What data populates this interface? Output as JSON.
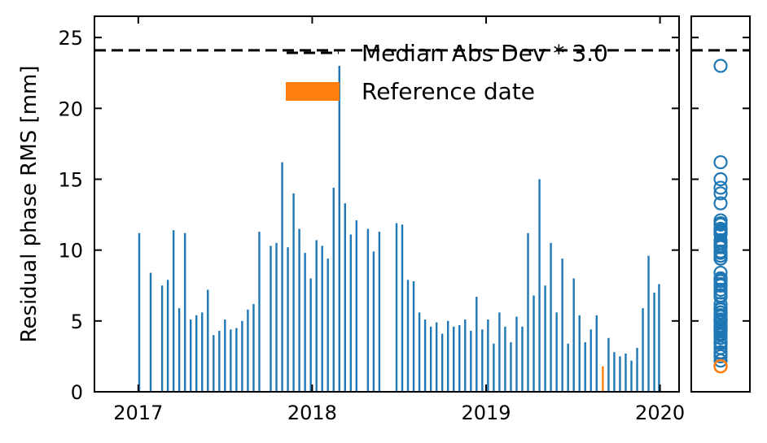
{
  "chart_data": {
    "type": "bar",
    "ylabel": "Residual phase RMS [mm]",
    "ylim": [
      0,
      26.5
    ],
    "xlim": [
      "2016-10-01",
      "2020-02-10"
    ],
    "yticks": [
      0,
      5,
      10,
      15,
      20,
      25
    ],
    "xticks": [
      "2017",
      "2018",
      "2019",
      "2020"
    ],
    "threshold": {
      "value": 24.1,
      "label": "Median Abs Dev * 3.0",
      "style": "dashed",
      "color": "#000000"
    },
    "legend": {
      "position": "top-right",
      "entries": [
        {
          "label": "Median Abs Dev * 3.0",
          "kind": "dashed-line",
          "color": "#000000"
        },
        {
          "label": "Reference date",
          "kind": "patch",
          "color": "#ff7f0e"
        }
      ]
    },
    "series_color": "#1f77b4",
    "reference_color": "#ff7f0e",
    "reference_date": "2019-09-03",
    "bars": [
      {
        "x": "2017-01-03",
        "y": 11.2
      },
      {
        "x": "2017-01-27",
        "y": 8.4
      },
      {
        "x": "2017-02-20",
        "y": 7.5
      },
      {
        "x": "2017-03-04",
        "y": 7.9
      },
      {
        "x": "2017-03-16",
        "y": 11.4
      },
      {
        "x": "2017-03-28",
        "y": 5.9
      },
      {
        "x": "2017-04-09",
        "y": 11.2
      },
      {
        "x": "2017-04-21",
        "y": 5.1
      },
      {
        "x": "2017-05-03",
        "y": 5.4
      },
      {
        "x": "2017-05-15",
        "y": 5.6
      },
      {
        "x": "2017-05-27",
        "y": 7.2
      },
      {
        "x": "2017-06-08",
        "y": 4.0
      },
      {
        "x": "2017-06-20",
        "y": 4.3
      },
      {
        "x": "2017-07-02",
        "y": 5.1
      },
      {
        "x": "2017-07-14",
        "y": 4.4
      },
      {
        "x": "2017-07-26",
        "y": 4.5
      },
      {
        "x": "2017-08-07",
        "y": 5.0
      },
      {
        "x": "2017-08-19",
        "y": 5.8
      },
      {
        "x": "2017-08-31",
        "y": 6.2
      },
      {
        "x": "2017-09-12",
        "y": 11.3
      },
      {
        "x": "2017-10-06",
        "y": 10.3
      },
      {
        "x": "2017-10-18",
        "y": 10.5
      },
      {
        "x": "2017-10-30",
        "y": 16.2
      },
      {
        "x": "2017-11-11",
        "y": 10.2
      },
      {
        "x": "2017-11-23",
        "y": 14.0
      },
      {
        "x": "2017-12-05",
        "y": 11.5
      },
      {
        "x": "2017-12-17",
        "y": 9.8
      },
      {
        "x": "2017-12-29",
        "y": 8.0
      },
      {
        "x": "2018-01-10",
        "y": 10.7
      },
      {
        "x": "2018-01-22",
        "y": 10.3
      },
      {
        "x": "2018-02-03",
        "y": 9.4
      },
      {
        "x": "2018-02-15",
        "y": 14.4
      },
      {
        "x": "2018-02-27",
        "y": 23.0
      },
      {
        "x": "2018-03-11",
        "y": 13.3
      },
      {
        "x": "2018-03-23",
        "y": 11.1
      },
      {
        "x": "2018-04-04",
        "y": 12.1
      },
      {
        "x": "2018-04-28",
        "y": 11.5
      },
      {
        "x": "2018-05-10",
        "y": 9.9
      },
      {
        "x": "2018-05-22",
        "y": 11.3
      },
      {
        "x": "2018-06-27",
        "y": 11.9
      },
      {
        "x": "2018-07-09",
        "y": 11.8
      },
      {
        "x": "2018-07-21",
        "y": 7.9
      },
      {
        "x": "2018-08-02",
        "y": 7.8
      },
      {
        "x": "2018-08-14",
        "y": 5.6
      },
      {
        "x": "2018-08-26",
        "y": 5.1
      },
      {
        "x": "2018-09-07",
        "y": 4.6
      },
      {
        "x": "2018-09-19",
        "y": 4.9
      },
      {
        "x": "2018-10-01",
        "y": 4.1
      },
      {
        "x": "2018-10-13",
        "y": 5.0
      },
      {
        "x": "2018-10-25",
        "y": 4.6
      },
      {
        "x": "2018-11-06",
        "y": 4.7
      },
      {
        "x": "2018-11-18",
        "y": 5.1
      },
      {
        "x": "2018-11-30",
        "y": 4.3
      },
      {
        "x": "2018-12-12",
        "y": 6.7
      },
      {
        "x": "2018-12-24",
        "y": 4.4
      },
      {
        "x": "2019-01-05",
        "y": 5.1
      },
      {
        "x": "2019-01-17",
        "y": 3.4
      },
      {
        "x": "2019-01-29",
        "y": 5.6
      },
      {
        "x": "2019-02-10",
        "y": 4.6
      },
      {
        "x": "2019-02-22",
        "y": 3.5
      },
      {
        "x": "2019-03-06",
        "y": 5.3
      },
      {
        "x": "2019-03-18",
        "y": 4.6
      },
      {
        "x": "2019-03-30",
        "y": 11.2
      },
      {
        "x": "2019-04-11",
        "y": 6.8
      },
      {
        "x": "2019-04-23",
        "y": 15.0
      },
      {
        "x": "2019-05-05",
        "y": 7.5
      },
      {
        "x": "2019-05-17",
        "y": 10.5
      },
      {
        "x": "2019-05-29",
        "y": 5.6
      },
      {
        "x": "2019-06-10",
        "y": 9.4
      },
      {
        "x": "2019-06-22",
        "y": 3.4
      },
      {
        "x": "2019-07-04",
        "y": 8.0
      },
      {
        "x": "2019-07-16",
        "y": 5.4
      },
      {
        "x": "2019-07-28",
        "y": 3.5
      },
      {
        "x": "2019-08-09",
        "y": 4.4
      },
      {
        "x": "2019-08-21",
        "y": 5.4
      },
      {
        "x": "2019-09-03",
        "y": 1.8
      },
      {
        "x": "2019-09-15",
        "y": 3.8
      },
      {
        "x": "2019-09-27",
        "y": 2.8
      },
      {
        "x": "2019-10-09",
        "y": 2.5
      },
      {
        "x": "2019-10-21",
        "y": 2.7
      },
      {
        "x": "2019-11-02",
        "y": 2.2
      },
      {
        "x": "2019-11-14",
        "y": 3.1
      },
      {
        "x": "2019-11-26",
        "y": 5.9
      },
      {
        "x": "2019-12-08",
        "y": 9.6
      },
      {
        "x": "2019-12-20",
        "y": 7.0
      },
      {
        "x": "2019-12-30",
        "y": 7.6
      }
    ],
    "side_panel": {
      "type": "scatter",
      "marker": "open-circle",
      "values_note": "distribution of all bar values, reference value highlighted"
    }
  }
}
